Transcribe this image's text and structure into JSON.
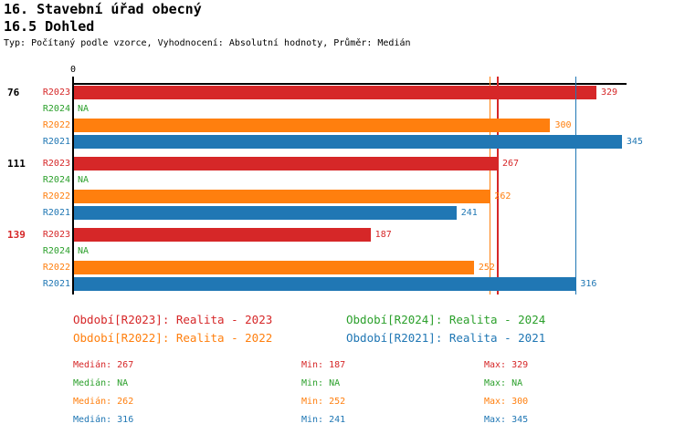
{
  "header": {
    "title1": "16. Stavební úřad obecný",
    "title2": "16.5 Dohled",
    "subtitle": "Typ: Počítaný podle vzorce, Vyhodnocení: Absolutní hodnoty, Průměr: Medián"
  },
  "colors": {
    "red": "#d62728",
    "green": "#2ca02c",
    "orange": "#ff7f0e",
    "blue": "#2077b4",
    "black": "#000000"
  },
  "chart_data": {
    "type": "bar",
    "orientation": "horizontal",
    "x_axis": {
      "zero_label": "0",
      "min": 0,
      "max": 348,
      "ticks": [
        0
      ]
    },
    "na_label": "NA",
    "groups": [
      {
        "label": "76",
        "label_color": "black"
      },
      {
        "label": "111",
        "label_color": "black"
      },
      {
        "label": "139",
        "label_color": "red"
      }
    ],
    "series": [
      {
        "name": "R2023",
        "color": "red",
        "values": [
          329,
          267,
          187
        ]
      },
      {
        "name": "R2024",
        "color": "green",
        "values": [
          null,
          null,
          null
        ]
      },
      {
        "name": "R2022",
        "color": "orange",
        "values": [
          300,
          262,
          252
        ]
      },
      {
        "name": "R2021",
        "color": "blue",
        "values": [
          345,
          241,
          316
        ]
      }
    ],
    "reference_lines": [
      {
        "value": 262,
        "color": "orange",
        "in_front": false
      },
      {
        "value": 267,
        "color": "red",
        "in_front": false
      },
      {
        "value": 316,
        "color": "blue",
        "in_front": true
      }
    ]
  },
  "legend": [
    {
      "text": "Období[R2023]: Realita - 2023",
      "color": "red"
    },
    {
      "text": "Období[R2024]: Realita - 2024",
      "color": "green"
    },
    {
      "text": "Období[R2022]: Realita - 2022",
      "color": "orange"
    },
    {
      "text": "Období[R2021]: Realita - 2021",
      "color": "blue"
    }
  ],
  "stats": {
    "col_labels": {
      "median": "Medián",
      "min": "Min",
      "max": "Max"
    },
    "rows": [
      {
        "color": "red",
        "median": "267",
        "min": "187",
        "max": "329"
      },
      {
        "color": "green",
        "median": "NA",
        "min": "NA",
        "max": "NA"
      },
      {
        "color": "orange",
        "median": "262",
        "min": "252",
        "max": "300"
      },
      {
        "color": "blue",
        "median": "316",
        "min": "241",
        "max": "345"
      }
    ]
  }
}
